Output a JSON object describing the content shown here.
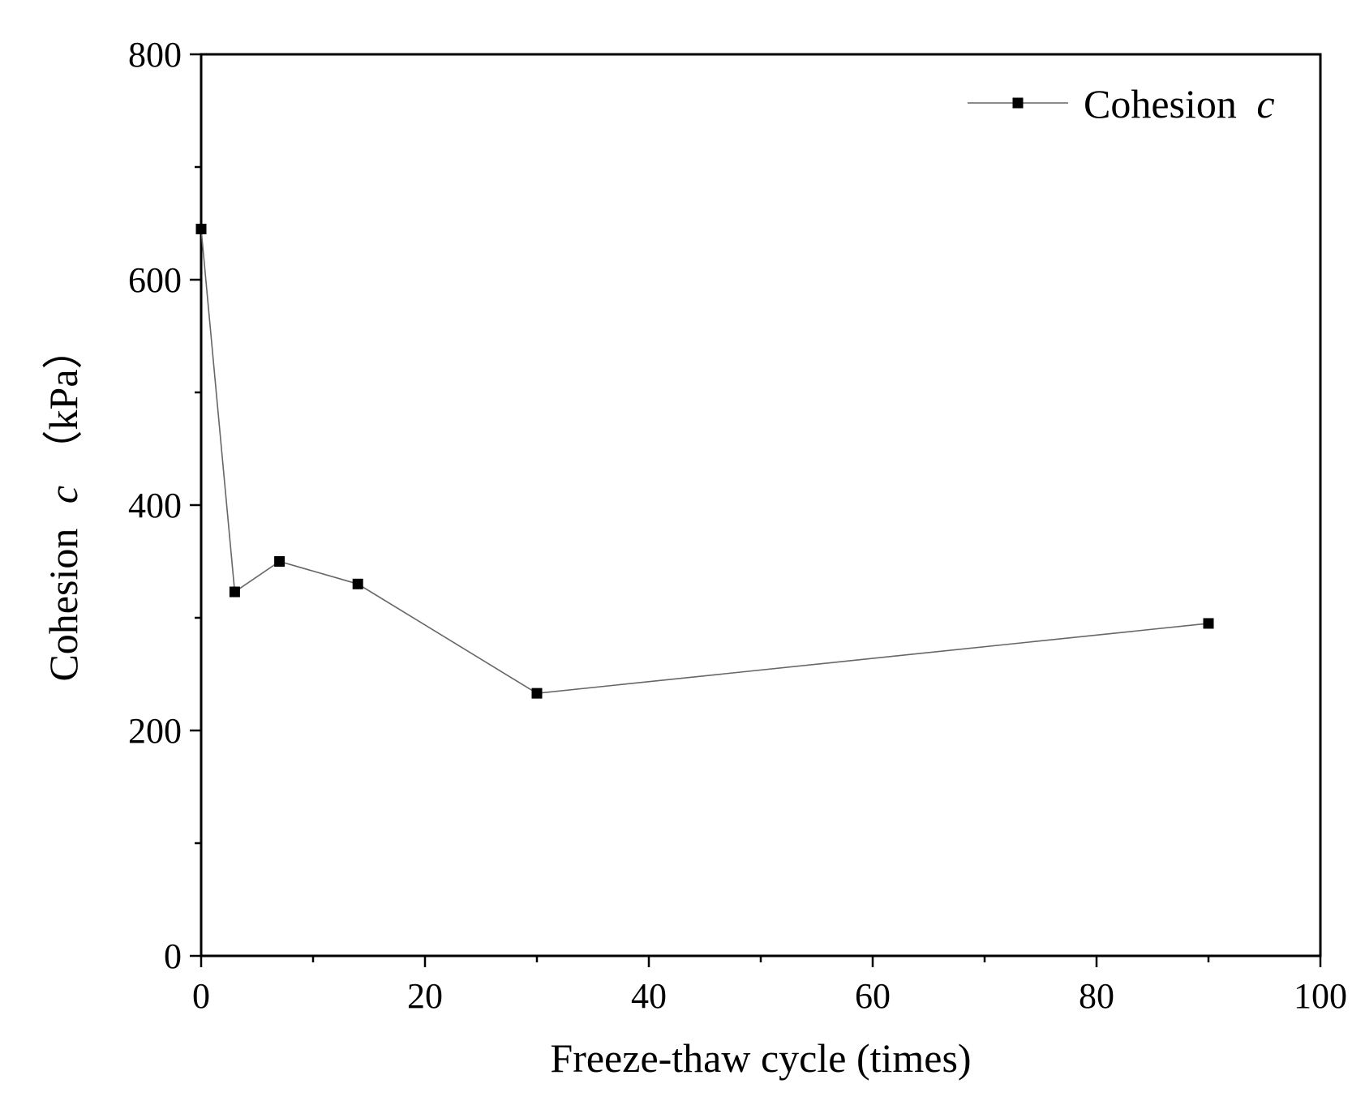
{
  "chart_data": {
    "type": "line",
    "title": "",
    "xlabel": "Freeze-thaw cycle (times)",
    "ylabel": {
      "prefix": "Cohesion",
      "var": "c",
      "unit": "（kPa）"
    },
    "xlim": [
      0,
      100
    ],
    "ylim": [
      0,
      800
    ],
    "x_ticks": [
      0,
      20,
      40,
      60,
      80,
      100
    ],
    "y_ticks": [
      0,
      200,
      400,
      600,
      800
    ],
    "grid": false,
    "legend_position": "top-right",
    "series": [
      {
        "name": "Cohesion",
        "name_var": "c",
        "color": "#000000",
        "line_color": "#666666",
        "marker": "square",
        "x": [
          0,
          3,
          7,
          14,
          30,
          90
        ],
        "y": [
          645,
          323,
          350,
          330,
          233,
          295
        ]
      }
    ]
  }
}
